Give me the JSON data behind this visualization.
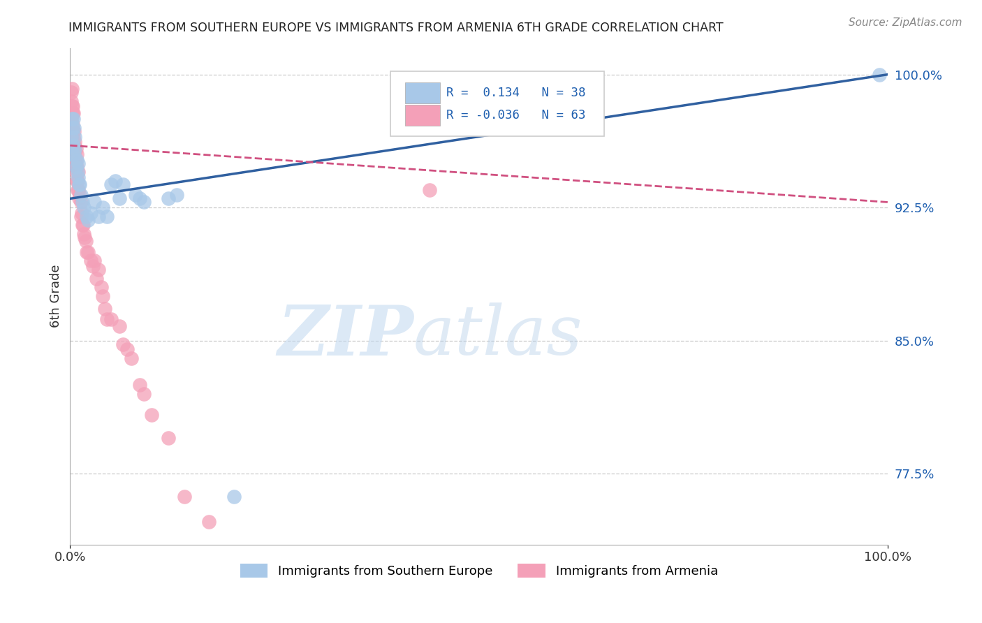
{
  "title": "IMMIGRANTS FROM SOUTHERN EUROPE VS IMMIGRANTS FROM ARMENIA 6TH GRADE CORRELATION CHART",
  "source": "Source: ZipAtlas.com",
  "ylabel": "6th Grade",
  "xlim": [
    0.0,
    1.0
  ],
  "ylim": [
    0.735,
    1.015
  ],
  "yticks": [
    0.775,
    0.85,
    0.925,
    1.0
  ],
  "ytick_labels": [
    "77.5%",
    "85.0%",
    "92.5%",
    "100.0%"
  ],
  "xticks": [
    0.0,
    1.0
  ],
  "xtick_labels": [
    "0.0%",
    "100.0%"
  ],
  "legend_r1": "R =  0.134",
  "legend_n1": "N = 38",
  "legend_r2": "R = -0.036",
  "legend_n2": "N = 63",
  "blue_color": "#a8c8e8",
  "pink_color": "#f4a0b8",
  "blue_line_color": "#3060a0",
  "pink_line_color": "#d05080",
  "watermark_zip": "ZIP",
  "watermark_atlas": "atlas",
  "blue_scatter_x": [
    0.001,
    0.002,
    0.003,
    0.003,
    0.004,
    0.004,
    0.005,
    0.005,
    0.006,
    0.006,
    0.007,
    0.008,
    0.009,
    0.01,
    0.01,
    0.011,
    0.012,
    0.013,
    0.015,
    0.017,
    0.02,
    0.022,
    0.025,
    0.03,
    0.035,
    0.04,
    0.045,
    0.05,
    0.055,
    0.06,
    0.065,
    0.08,
    0.085,
    0.09,
    0.12,
    0.13,
    0.2,
    0.99
  ],
  "blue_scatter_y": [
    0.965,
    0.975,
    0.955,
    0.97,
    0.96,
    0.975,
    0.955,
    0.97,
    0.958,
    0.965,
    0.948,
    0.952,
    0.945,
    0.942,
    0.95,
    0.938,
    0.938,
    0.932,
    0.928,
    0.925,
    0.92,
    0.918,
    0.922,
    0.928,
    0.92,
    0.925,
    0.92,
    0.938,
    0.94,
    0.93,
    0.938,
    0.932,
    0.93,
    0.928,
    0.93,
    0.932,
    0.762,
    1.0
  ],
  "pink_scatter_x": [
    0.001,
    0.001,
    0.001,
    0.002,
    0.002,
    0.002,
    0.002,
    0.003,
    0.003,
    0.003,
    0.003,
    0.004,
    0.004,
    0.004,
    0.005,
    0.005,
    0.005,
    0.006,
    0.006,
    0.006,
    0.007,
    0.007,
    0.007,
    0.008,
    0.008,
    0.008,
    0.009,
    0.009,
    0.01,
    0.01,
    0.011,
    0.012,
    0.013,
    0.013,
    0.014,
    0.015,
    0.016,
    0.017,
    0.018,
    0.019,
    0.02,
    0.022,
    0.025,
    0.028,
    0.03,
    0.032,
    0.035,
    0.038,
    0.04,
    0.042,
    0.045,
    0.05,
    0.06,
    0.065,
    0.07,
    0.075,
    0.085,
    0.09,
    0.1,
    0.12,
    0.14,
    0.17,
    0.44
  ],
  "pink_scatter_y": [
    0.985,
    0.975,
    0.99,
    0.978,
    0.968,
    0.982,
    0.992,
    0.972,
    0.978,
    0.982,
    0.968,
    0.96,
    0.965,
    0.978,
    0.95,
    0.96,
    0.968,
    0.955,
    0.95,
    0.962,
    0.945,
    0.952,
    0.958,
    0.94,
    0.948,
    0.955,
    0.94,
    0.935,
    0.935,
    0.945,
    0.93,
    0.932,
    0.928,
    0.92,
    0.922,
    0.915,
    0.915,
    0.91,
    0.908,
    0.906,
    0.9,
    0.9,
    0.895,
    0.892,
    0.895,
    0.885,
    0.89,
    0.88,
    0.875,
    0.868,
    0.862,
    0.862,
    0.858,
    0.848,
    0.845,
    0.84,
    0.825,
    0.82,
    0.808,
    0.795,
    0.762,
    0.748,
    0.935
  ],
  "blue_trend_x": [
    0.0,
    1.0
  ],
  "blue_trend_y": [
    0.93,
    1.0
  ],
  "pink_trend_x": [
    0.0,
    1.0
  ],
  "pink_trend_y": [
    0.96,
    0.928
  ]
}
